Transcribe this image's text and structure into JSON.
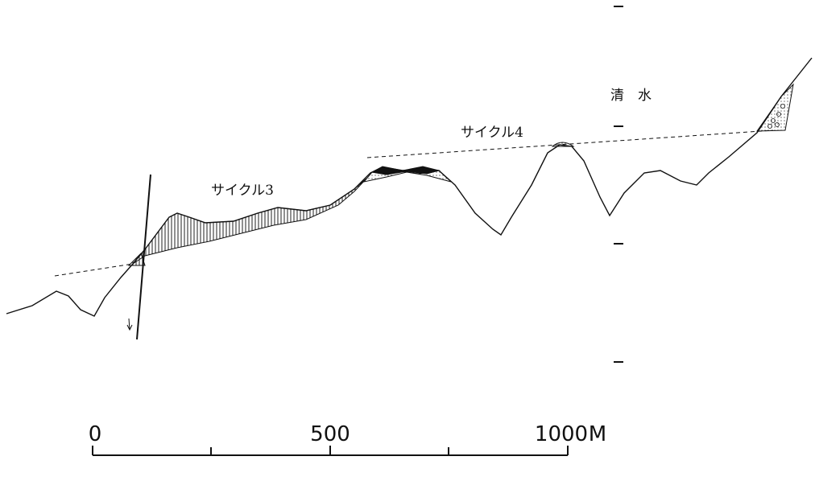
{
  "labels": {
    "place": "清　水",
    "cycle4": "サイクル4",
    "cycle3": "サイクル3"
  },
  "scale": {
    "ticks": [
      "0",
      "500",
      "1000"
    ],
    "unit": "M"
  }
}
